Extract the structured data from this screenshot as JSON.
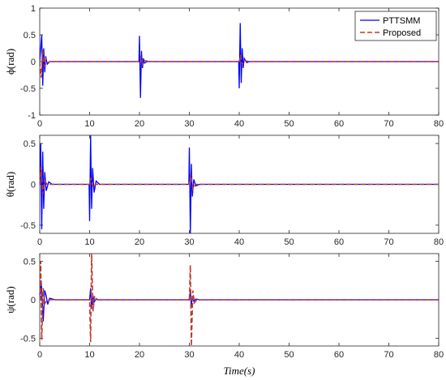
{
  "chart_data": [
    {
      "type": "line",
      "ylabel": "ϕ(rad)",
      "xlim": [
        0,
        80
      ],
      "ylim": [
        -1,
        1
      ],
      "xticks": [
        "0",
        "10",
        "20",
        "30",
        "40",
        "50",
        "60",
        "70",
        "80"
      ],
      "yticks": [
        "-1",
        "-0.5",
        "0",
        "0.5",
        "1"
      ],
      "legend": {
        "position": "top-right",
        "entries": [
          "PTTSMM",
          "Proposed"
        ]
      },
      "series": [
        {
          "name": "PTTSMM",
          "color": "#0000ff",
          "style": "solid",
          "x": [
            0,
            0.4,
            0.6,
            0.8,
            1.0,
            1.2,
            1.5,
            2.0,
            19.9,
            20.0,
            20.2,
            20.4,
            20.6,
            20.8,
            21.0,
            21.5,
            22.0,
            39.9,
            40.0,
            40.2,
            40.4,
            40.6,
            40.8,
            41.0,
            41.5,
            42.0,
            80
          ],
          "y": [
            0,
            0.5,
            -0.45,
            0.25,
            -0.2,
            0.1,
            -0.05,
            0,
            0,
            0.48,
            -0.68,
            0.2,
            -0.12,
            0.06,
            -0.03,
            0,
            0,
            0,
            -0.5,
            0.72,
            -0.4,
            0.25,
            -0.12,
            0.06,
            -0.02,
            0,
            0
          ]
        },
        {
          "name": "Proposed",
          "color": "#c0392b",
          "style": "dashed",
          "x": [
            0,
            0.3,
            0.6,
            0.9,
            1.2,
            1.6,
            2.0,
            20.0,
            20.3,
            20.6,
            21.0,
            22.0,
            40.0,
            40.3,
            40.6,
            41.0,
            42.0,
            80
          ],
          "y": [
            0,
            -0.3,
            0.22,
            -0.1,
            0.05,
            -0.02,
            0,
            0,
            0.1,
            -0.05,
            0.02,
            0,
            0,
            0.12,
            -0.06,
            0.02,
            0,
            0
          ]
        }
      ]
    },
    {
      "type": "line",
      "ylabel": "θ(rad)",
      "xlim": [
        0,
        80
      ],
      "ylim": [
        -0.6,
        0.6
      ],
      "xticks": [
        "0",
        "10",
        "20",
        "30",
        "40",
        "50",
        "60",
        "70",
        "80"
      ],
      "yticks": [
        "-0.5",
        "0",
        "0.5"
      ],
      "series": [
        {
          "name": "PTTSMM",
          "color": "#0000ff",
          "style": "solid",
          "x": [
            0,
            0.2,
            0.4,
            0.6,
            0.8,
            1.0,
            1.3,
            1.8,
            2.5,
            9.9,
            10.0,
            10.2,
            10.4,
            10.6,
            10.9,
            11.3,
            12.0,
            29.9,
            30.0,
            30.2,
            30.4,
            30.6,
            30.9,
            31.3,
            32.0,
            80
          ],
          "y": [
            0,
            0.5,
            -0.55,
            0.4,
            -0.3,
            0.15,
            -0.08,
            0.03,
            0,
            0,
            -0.45,
            0.6,
            -0.3,
            0.2,
            -0.1,
            0.04,
            0,
            0,
            0.45,
            -0.6,
            0.25,
            -0.15,
            0.06,
            -0.02,
            0,
            0
          ]
        },
        {
          "name": "Proposed",
          "color": "#c0392b",
          "style": "dashed",
          "x": [
            0,
            0.3,
            0.6,
            1.0,
            1.5,
            10.0,
            10.3,
            10.7,
            11.2,
            30.0,
            30.3,
            30.7,
            31.2,
            80
          ],
          "y": [
            0,
            0.22,
            -0.12,
            0.04,
            0,
            0,
            0.08,
            -0.04,
            0,
            0,
            0.12,
            -0.06,
            0,
            0
          ]
        }
      ]
    },
    {
      "type": "line",
      "ylabel": "ψ(rad)",
      "xlabel": "Time(s)",
      "xlim": [
        0,
        80
      ],
      "ylim": [
        -0.6,
        0.6
      ],
      "xticks": [
        "0",
        "10",
        "20",
        "30",
        "40",
        "50",
        "60",
        "70",
        "80"
      ],
      "yticks": [
        "-0.5",
        "0",
        "0.5"
      ],
      "series": [
        {
          "name": "PTTSMM",
          "color": "#0000ff",
          "style": "solid",
          "x": [
            0,
            0.3,
            0.7,
            1.0,
            1.3,
            1.6,
            2.0,
            3.0,
            10.0,
            10.2,
            10.4,
            10.6,
            10.9,
            11.3,
            12.0,
            30.0,
            30.2,
            30.4,
            30.6,
            30.9,
            31.3,
            32.0,
            80
          ],
          "y": [
            0,
            0.25,
            -0.28,
            0.12,
            0.05,
            -0.06,
            0.02,
            0,
            0,
            0.15,
            -0.12,
            0.07,
            -0.03,
            0.01,
            0,
            0,
            0.12,
            -0.1,
            0.05,
            -0.02,
            0.01,
            0,
            0
          ]
        },
        {
          "name": "Proposed",
          "color": "#c0392b",
          "style": "dashed",
          "x": [
            0,
            0.2,
            0.4,
            0.7,
            1.0,
            1.5,
            10.0,
            10.2,
            10.4,
            10.7,
            11.0,
            11.5,
            30.0,
            30.2,
            30.4,
            30.7,
            31.0,
            31.5,
            80
          ],
          "y": [
            0,
            0.5,
            -0.52,
            0.15,
            -0.05,
            0,
            0,
            -0.55,
            0.6,
            -0.15,
            0.05,
            0,
            0,
            0.45,
            -0.6,
            0.12,
            -0.04,
            0,
            0
          ]
        }
      ]
    }
  ]
}
